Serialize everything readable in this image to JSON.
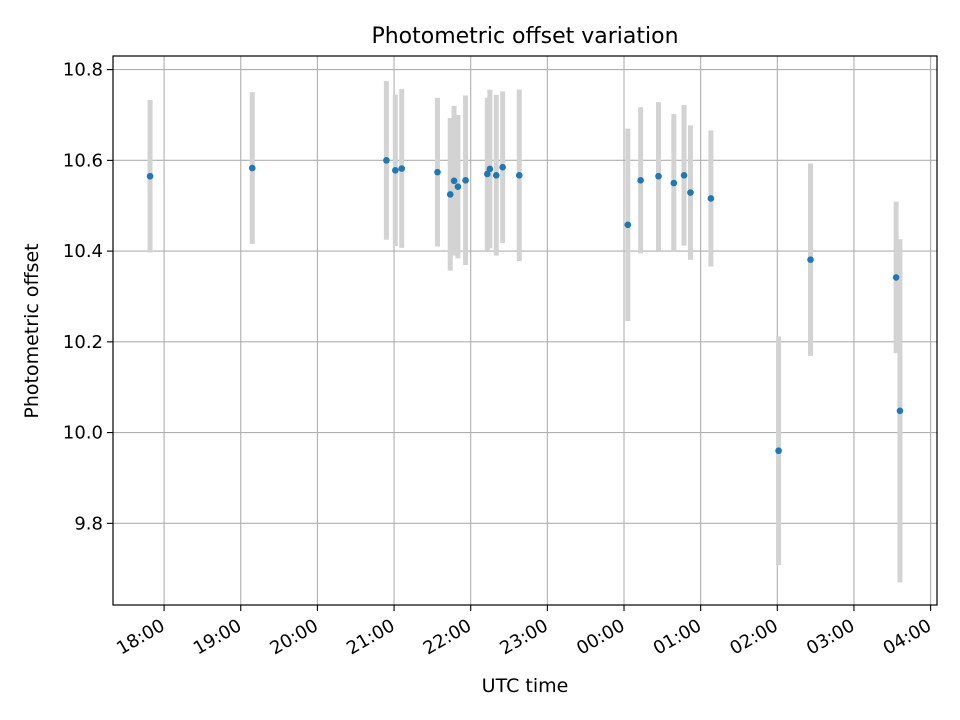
{
  "chart_data": {
    "type": "scatter",
    "title": "Photometric offset variation",
    "xlabel": "UTC time",
    "ylabel": "Photometric offset",
    "x_ticks": [
      "18:00",
      "19:00",
      "20:00",
      "21:00",
      "22:00",
      "23:00",
      "00:00",
      "01:00",
      "02:00",
      "03:00",
      "04:00"
    ],
    "y_ticks": [
      "9.8",
      "10.0",
      "10.2",
      "10.4",
      "10.6",
      "10.8"
    ],
    "x_range": [
      "17:20",
      "04:05"
    ],
    "y_range": [
      9.62,
      10.83
    ],
    "grid": true,
    "point_color": "#1f77b4",
    "errorbar_color": "#d3d3d3",
    "points": [
      {
        "t": "17:49",
        "y": 10.565,
        "err": 0.168
      },
      {
        "t": "19:09",
        "y": 10.583,
        "err": 0.167
      },
      {
        "t": "20:54",
        "y": 10.6,
        "err": 0.175
      },
      {
        "t": "21:01",
        "y": 10.578,
        "err": 0.167
      },
      {
        "t": "21:06",
        "y": 10.582,
        "err": 0.175
      },
      {
        "t": "21:34",
        "y": 10.574,
        "err": 0.164
      },
      {
        "t": "21:44",
        "y": 10.525,
        "err": 0.168
      },
      {
        "t": "21:47",
        "y": 10.555,
        "err": 0.165
      },
      {
        "t": "21:50",
        "y": 10.542,
        "err": 0.158
      },
      {
        "t": "21:56",
        "y": 10.556,
        "err": 0.187
      },
      {
        "t": "22:13",
        "y": 10.57,
        "err": 0.168
      },
      {
        "t": "22:15",
        "y": 10.581,
        "err": 0.175
      },
      {
        "t": "22:20",
        "y": 10.567,
        "err": 0.177
      },
      {
        "t": "22:25",
        "y": 10.585,
        "err": 0.167
      },
      {
        "t": "22:38",
        "y": 10.567,
        "err": 0.189
      },
      {
        "t": "00:03",
        "y": 10.458,
        "err": 0.212
      },
      {
        "t": "00:13",
        "y": 10.556,
        "err": 0.161
      },
      {
        "t": "00:27",
        "y": 10.565,
        "err": 0.163
      },
      {
        "t": "00:39",
        "y": 10.55,
        "err": 0.152
      },
      {
        "t": "00:47",
        "y": 10.567,
        "err": 0.155
      },
      {
        "t": "00:52",
        "y": 10.529,
        "err": 0.148
      },
      {
        "t": "01:08",
        "y": 10.516,
        "err": 0.15
      },
      {
        "t": "02:01",
        "y": 9.96,
        "err": 0.252
      },
      {
        "t": "02:26",
        "y": 10.381,
        "err": 0.212
      },
      {
        "t": "03:33",
        "y": 10.342,
        "err": 0.167
      },
      {
        "t": "03:36",
        "y": 10.048,
        "err": 0.378
      }
    ]
  }
}
